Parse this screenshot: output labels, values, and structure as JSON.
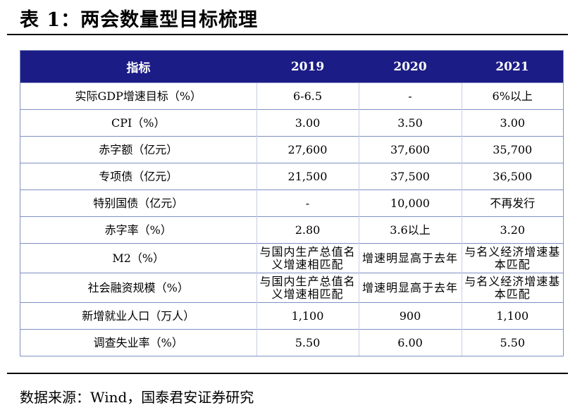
{
  "title": "表 1：两会数量型目标梳理",
  "table": {
    "headers": [
      "指标",
      "2019",
      "2020",
      "2021"
    ],
    "rows": [
      [
        "实际GDP增速目标（%）",
        "6-6.5",
        "-",
        "6%以上"
      ],
      [
        "CPI（%）",
        "3.00",
        "3.50",
        "3.00"
      ],
      [
        "赤字额（亿元）",
        "27,600",
        "37,600",
        "35,700"
      ],
      [
        "专项债（亿元）",
        "21,500",
        "37,500",
        "36,500"
      ],
      [
        "特别国债（亿元）",
        "-",
        "10,000",
        "不再发行"
      ],
      [
        "赤字率（%）",
        "2.80",
        "3.6以上",
        "3.20"
      ],
      [
        "M2（%）",
        "与国内生产总值名义增速相匹配",
        "增速明显高于去年",
        "与名义经济增速基本匹配"
      ],
      [
        "社会融资规模（%）",
        "与国内生产总值名义增速相匹配",
        "增速明显高于去年",
        "与名义经济增速基本匹配"
      ],
      [
        "新增就业人口（万人）",
        "1,100",
        "900",
        "1,100"
      ],
      [
        "调查失业率（%）",
        "5.50",
        "6.00",
        "5.50"
      ]
    ]
  },
  "source": "数据来源：Wind，国泰君安证券研究"
}
